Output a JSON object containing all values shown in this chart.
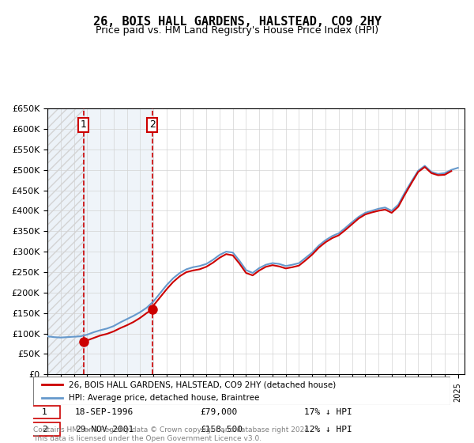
{
  "title": "26, BOIS HALL GARDENS, HALSTEAD, CO9 2HY",
  "subtitle": "Price paid vs. HM Land Registry's House Price Index (HPI)",
  "legend_line1": "26, BOIS HALL GARDENS, HALSTEAD, CO9 2HY (detached house)",
  "legend_line2": "HPI: Average price, detached house, Braintree",
  "footnote": "Contains HM Land Registry data © Crown copyright and database right 2024.\nThis data is licensed under the Open Government Licence v3.0.",
  "sale1_date": "18-SEP-1996",
  "sale1_price": 79000,
  "sale1_pct": "17% ↓ HPI",
  "sale1_year": 1996.72,
  "sale2_date": "29-NOV-2001",
  "sale2_price": 158500,
  "sale2_pct": "12% ↓ HPI",
  "sale2_year": 2001.91,
  "ylim": [
    0,
    650000
  ],
  "xlim_start": 1994.0,
  "xlim_end": 2025.5,
  "red_color": "#cc0000",
  "blue_color": "#6699cc",
  "hpi_data": {
    "years": [
      1994.0,
      1994.5,
      1995.0,
      1995.5,
      1996.0,
      1996.5,
      1997.0,
      1997.5,
      1998.0,
      1998.5,
      1999.0,
      1999.5,
      2000.0,
      2000.5,
      2001.0,
      2001.5,
      2002.0,
      2002.5,
      2003.0,
      2003.5,
      2004.0,
      2004.5,
      2005.0,
      2005.5,
      2006.0,
      2006.5,
      2007.0,
      2007.5,
      2008.0,
      2008.5,
      2009.0,
      2009.5,
      2010.0,
      2010.5,
      2011.0,
      2011.5,
      2012.0,
      2012.5,
      2013.0,
      2013.5,
      2014.0,
      2014.5,
      2015.0,
      2015.5,
      2016.0,
      2016.5,
      2017.0,
      2017.5,
      2018.0,
      2018.5,
      2019.0,
      2019.5,
      2020.0,
      2020.5,
      2021.0,
      2021.5,
      2022.0,
      2022.5,
      2023.0,
      2023.5,
      2024.0,
      2024.5,
      2025.0
    ],
    "values": [
      93000,
      91000,
      90000,
      91000,
      92000,
      93000,
      97000,
      103000,
      108000,
      112000,
      118000,
      127000,
      135000,
      143000,
      152000,
      163000,
      178000,
      198000,
      218000,
      235000,
      248000,
      257000,
      262000,
      265000,
      270000,
      280000,
      292000,
      300000,
      298000,
      278000,
      255000,
      248000,
      260000,
      268000,
      272000,
      270000,
      265000,
      268000,
      272000,
      285000,
      298000,
      315000,
      328000,
      338000,
      345000,
      358000,
      372000,
      385000,
      395000,
      400000,
      405000,
      408000,
      400000,
      415000,
      445000,
      472000,
      498000,
      510000,
      495000,
      490000,
      492000,
      500000,
      505000
    ]
  },
  "property_data": {
    "years": [
      1996.72,
      1996.75,
      1997.0,
      1997.5,
      1998.0,
      1998.5,
      1999.0,
      1999.5,
      2000.0,
      2000.5,
      2001.0,
      2001.5,
      2001.91,
      2002.0,
      2002.5,
      2003.0,
      2003.5,
      2004.0,
      2004.5,
      2005.0,
      2005.5,
      2006.0,
      2006.5,
      2007.0,
      2007.5,
      2008.0,
      2008.5,
      2009.0,
      2009.5,
      2010.0,
      2010.5,
      2011.0,
      2011.5,
      2012.0,
      2012.5,
      2013.0,
      2013.5,
      2014.0,
      2014.5,
      2015.0,
      2015.5,
      2016.0,
      2016.5,
      2017.0,
      2017.5,
      2018.0,
      2018.5,
      2019.0,
      2019.5,
      2020.0,
      2020.5,
      2021.0,
      2021.5,
      2022.0,
      2022.5,
      2023.0,
      2023.5,
      2024.0,
      2024.5
    ],
    "values": [
      79000,
      79000,
      83000,
      89000,
      95000,
      99000,
      105000,
      113000,
      120000,
      128000,
      138000,
      150000,
      158500,
      168000,
      188000,
      208000,
      226000,
      240000,
      250000,
      254000,
      257000,
      263000,
      273000,
      285000,
      294000,
      291000,
      271000,
      248000,
      242000,
      254000,
      263000,
      267000,
      264000,
      259000,
      262000,
      266000,
      279000,
      293000,
      310000,
      323000,
      333000,
      340000,
      353000,
      367000,
      381000,
      391000,
      396000,
      400000,
      403000,
      395000,
      410000,
      440000,
      468000,
      495000,
      507000,
      492000,
      487000,
      488000,
      497000
    ]
  }
}
